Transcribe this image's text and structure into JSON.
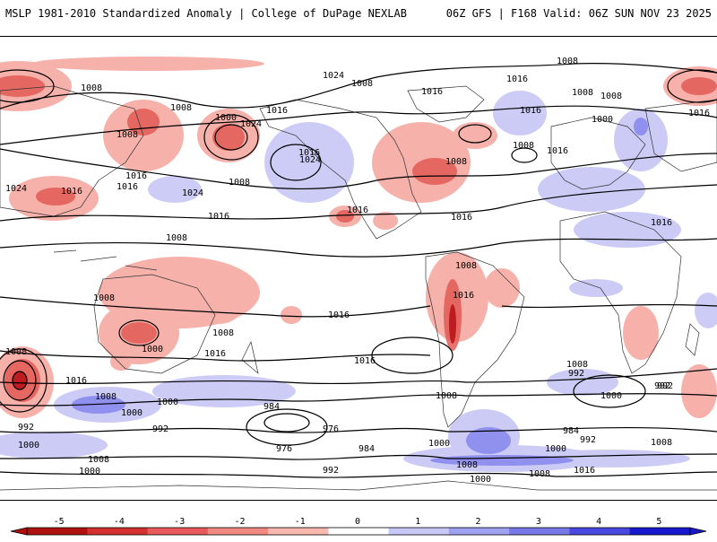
{
  "header": {
    "left": "MSLP 1981-2010 Standardized Anomaly | College of DuPage NEXLAB",
    "right": "06Z GFS | F168 Valid: 06Z SUN NOV 23 2025"
  },
  "map": {
    "variable": "Mean Sea Level Pressure standardized anomaly",
    "contour_unit": "hPa",
    "isobar_labels": [
      {
        "id": "a1",
        "text": "1008"
      },
      {
        "id": "a2",
        "text": "1008"
      },
      {
        "id": "a3",
        "text": "1000"
      },
      {
        "id": "a4",
        "text": "1008"
      },
      {
        "id": "a5",
        "text": "1016"
      },
      {
        "id": "a6",
        "text": "1024"
      },
      {
        "id": "a7",
        "text": "1016"
      },
      {
        "id": "a8",
        "text": "1016"
      },
      {
        "id": "a9",
        "text": "1024"
      },
      {
        "id": "a10",
        "text": "1008"
      },
      {
        "id": "a11",
        "text": "1016"
      },
      {
        "id": "a12",
        "text": "1024"
      },
      {
        "id": "a13",
        "text": "1016"
      },
      {
        "id": "a14",
        "text": "1016"
      },
      {
        "id": "a15",
        "text": "1016"
      },
      {
        "id": "a16",
        "text": "1024"
      },
      {
        "id": "a17",
        "text": "1008"
      },
      {
        "id": "a18",
        "text": "1016"
      },
      {
        "id": "a19",
        "text": "1008"
      },
      {
        "id": "a20",
        "text": "1016"
      },
      {
        "id": "a21",
        "text": "1024"
      },
      {
        "id": "a22",
        "text": "1016"
      },
      {
        "id": "a23",
        "text": "1008"
      },
      {
        "id": "a24",
        "text": "1016"
      },
      {
        "id": "a25",
        "text": "1008"
      },
      {
        "id": "a26",
        "text": "1008"
      },
      {
        "id": "a27",
        "text": "1016"
      },
      {
        "id": "a28",
        "text": "1008"
      },
      {
        "id": "a29",
        "text": "1008"
      },
      {
        "id": "a30",
        "text": "1000"
      },
      {
        "id": "a31",
        "text": "1016"
      },
      {
        "id": "a32",
        "text": "1016"
      },
      {
        "id": "a33",
        "text": "1008"
      },
      {
        "id": "a34",
        "text": "1016"
      },
      {
        "id": "a35",
        "text": "1016"
      },
      {
        "id": "a36",
        "text": "1016"
      },
      {
        "id": "a37",
        "text": "1008"
      },
      {
        "id": "a38",
        "text": "1008"
      },
      {
        "id": "a39",
        "text": "1016"
      },
      {
        "id": "a40",
        "text": "1008"
      },
      {
        "id": "a41",
        "text": "1000"
      },
      {
        "id": "a42",
        "text": "992"
      },
      {
        "id": "a43",
        "text": "1008"
      },
      {
        "id": "a44",
        "text": "1016"
      },
      {
        "id": "a45",
        "text": "1000"
      },
      {
        "id": "a46",
        "text": "1000"
      },
      {
        "id": "a47",
        "text": "992"
      },
      {
        "id": "a48",
        "text": "984"
      },
      {
        "id": "a49",
        "text": "992"
      },
      {
        "id": "a50",
        "text": "976"
      },
      {
        "id": "a51",
        "text": "1000"
      },
      {
        "id": "a52",
        "text": "976"
      },
      {
        "id": "a53",
        "text": "984"
      },
      {
        "id": "a54",
        "text": "1008"
      },
      {
        "id": "a55",
        "text": "1000"
      },
      {
        "id": "a56",
        "text": "992"
      },
      {
        "id": "a57",
        "text": "1008"
      },
      {
        "id": "a58",
        "text": "1000"
      },
      {
        "id": "a59",
        "text": "984"
      },
      {
        "id": "a60",
        "text": "992"
      },
      {
        "id": "a61",
        "text": "1000"
      },
      {
        "id": "a62",
        "text": "1008"
      },
      {
        "id": "a63",
        "text": "1008"
      },
      {
        "id": "a64",
        "text": "1016"
      },
      {
        "id": "a65",
        "text": "1000"
      },
      {
        "id": "a66",
        "text": "992"
      },
      {
        "id": "a67",
        "text": "1000"
      },
      {
        "id": "a68",
        "text": "1008"
      },
      {
        "id": "a69",
        "text": "992"
      },
      {
        "id": "a70",
        "text": "1008"
      }
    ]
  },
  "colorbar": {
    "ticks": [
      "-5",
      "-4",
      "-3",
      "-2",
      "-1",
      "0",
      "1",
      "2",
      "3",
      "4",
      "5"
    ],
    "colors": [
      "#b01010",
      "#d43030",
      "#e85a5a",
      "#f08a80",
      "#f8b8b0",
      "#ffffff",
      "#c8c8f8",
      "#a0a0f0",
      "#7878e8",
      "#4848e0",
      "#1818d0"
    ]
  }
}
